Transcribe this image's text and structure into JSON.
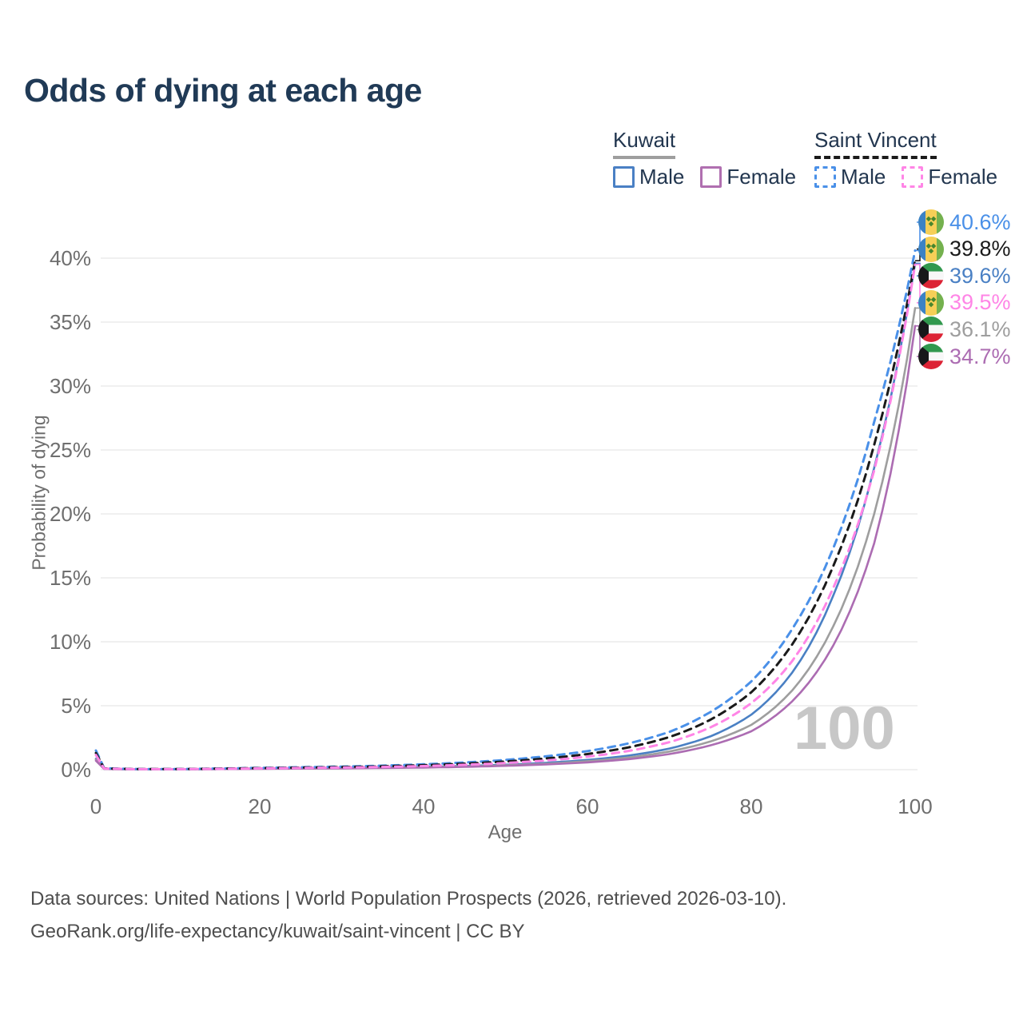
{
  "title": "Odds of dying at each age",
  "colors": {
    "title": "#203a56",
    "legend_text": "#22364f",
    "axis_text": "#6e6e6e",
    "grid": "#ececec",
    "watermark": "#c7c7c7",
    "footer": "#4e4e4e"
  },
  "legend": {
    "groups": [
      {
        "name": "Kuwait",
        "line_style": "solid",
        "line_color": "#9e9e9e",
        "items": [
          {
            "label": "Male",
            "color": "#4a80c4",
            "dash": false
          },
          {
            "label": "Female",
            "color": "#b06fb0",
            "dash": false
          }
        ]
      },
      {
        "name": "Saint Vincent",
        "line_style": "dashed",
        "line_color": "#1a1a1a",
        "items": [
          {
            "label": "Male",
            "color": "#4a90e8",
            "dash": true
          },
          {
            "label": "Female",
            "color": "#ff85e6",
            "dash": true
          }
        ]
      }
    ]
  },
  "chart_data": {
    "type": "line",
    "title": "Odds of dying at each age",
    "xlabel": "Age",
    "ylabel": "Probability of dying",
    "xlim": [
      0,
      100
    ],
    "ylim": [
      0,
      43
    ],
    "x_ticks": [
      "0",
      "20",
      "40",
      "60",
      "80",
      "100"
    ],
    "y_ticks": [
      "0%",
      "5%",
      "10%",
      "15%",
      "20%",
      "25%",
      "30%",
      "35%",
      "40%"
    ],
    "grid": "horizontal",
    "legend_position": "top-right",
    "ages": [
      0,
      1,
      5,
      10,
      15,
      20,
      25,
      30,
      35,
      40,
      45,
      50,
      55,
      60,
      65,
      70,
      75,
      80,
      85,
      90,
      95,
      100
    ],
    "series": [
      {
        "id": "sv-male",
        "name": "Saint Vincent Male",
        "country": "Saint Vincent",
        "sex": "Male",
        "color": "#4a90e8",
        "dash": true,
        "end_value_pct": 40.6,
        "values": [
          1.5,
          0.12,
          0.05,
          0.05,
          0.09,
          0.14,
          0.19,
          0.24,
          0.31,
          0.42,
          0.56,
          0.76,
          1.05,
          1.45,
          2.05,
          2.95,
          4.5,
          6.9,
          11.0,
          17.3,
          27.2,
          40.6
        ]
      },
      {
        "id": "sv-total",
        "name": "Saint Vincent Both sexes",
        "country": "Saint Vincent",
        "sex": "Both",
        "color": "#1a1a1a",
        "dash": true,
        "end_value_pct": 39.8,
        "values": [
          1.3,
          0.1,
          0.045,
          0.045,
          0.08,
          0.12,
          0.16,
          0.2,
          0.26,
          0.35,
          0.47,
          0.64,
          0.88,
          1.22,
          1.74,
          2.55,
          3.9,
          6.05,
          9.8,
          15.9,
          25.4,
          39.8
        ]
      },
      {
        "id": "kw-male",
        "name": "Kuwait Male",
        "country": "Kuwait",
        "sex": "Male",
        "color": "#4a80c4",
        "dash": false,
        "end_value_pct": 39.6,
        "values": [
          0.85,
          0.07,
          0.03,
          0.03,
          0.06,
          0.09,
          0.11,
          0.13,
          0.17,
          0.22,
          0.29,
          0.39,
          0.54,
          0.76,
          1.1,
          1.65,
          2.6,
          4.3,
          7.6,
          13.6,
          23.6,
          39.6
        ]
      },
      {
        "id": "sv-female",
        "name": "Saint Vincent Female",
        "country": "Saint Vincent",
        "sex": "Female",
        "color": "#ff85e6",
        "dash": true,
        "end_value_pct": 39.5,
        "values": [
          1.15,
          0.09,
          0.04,
          0.04,
          0.065,
          0.1,
          0.13,
          0.16,
          0.21,
          0.28,
          0.38,
          0.52,
          0.72,
          1.02,
          1.46,
          2.15,
          3.3,
          5.2,
          8.5,
          14.2,
          23.4,
          39.5
        ]
      },
      {
        "id": "kw-total",
        "name": "Kuwait Both sexes",
        "country": "Kuwait",
        "sex": "Both",
        "color": "#9e9e9e",
        "dash": false,
        "end_value_pct": 36.1,
        "values": [
          0.78,
          0.06,
          0.027,
          0.028,
          0.05,
          0.075,
          0.095,
          0.115,
          0.15,
          0.19,
          0.25,
          0.34,
          0.47,
          0.66,
          0.95,
          1.42,
          2.2,
          3.5,
          6.2,
          11.2,
          20.0,
          36.1
        ]
      },
      {
        "id": "kw-female",
        "name": "Kuwait Female",
        "country": "Kuwait",
        "sex": "Female",
        "color": "#ac6cb2",
        "dash": false,
        "end_value_pct": 34.7,
        "values": [
          0.7,
          0.055,
          0.025,
          0.026,
          0.045,
          0.065,
          0.085,
          0.1,
          0.13,
          0.165,
          0.22,
          0.3,
          0.41,
          0.57,
          0.82,
          1.22,
          1.9,
          3.0,
          5.35,
          9.7,
          17.7,
          34.7
        ]
      }
    ]
  },
  "end_labels": [
    {
      "value": "40.6%",
      "flag": "saint-vincent",
      "series": "sv-male",
      "color": "#4a90e8"
    },
    {
      "value": "39.8%",
      "flag": "saint-vincent",
      "series": "sv-total",
      "color": "#1a1a1a"
    },
    {
      "value": "39.6%",
      "flag": "kuwait",
      "series": "kw-male",
      "color": "#4a80c4"
    },
    {
      "value": "39.5%",
      "flag": "saint-vincent",
      "series": "sv-female",
      "color": "#ff85e6"
    },
    {
      "value": "36.1%",
      "flag": "kuwait",
      "series": "kw-total",
      "color": "#9e9e9e"
    },
    {
      "value": "34.7%",
      "flag": "kuwait",
      "series": "kw-female",
      "color": "#ac6cb2"
    }
  ],
  "watermark": "100",
  "footer": {
    "line1": "Data sources: United Nations | World Population Prospects (2026, retrieved 2026-03-10).",
    "line2": "GeoRank.org/life-expectancy/kuwait/saint-vincent | CC BY"
  }
}
